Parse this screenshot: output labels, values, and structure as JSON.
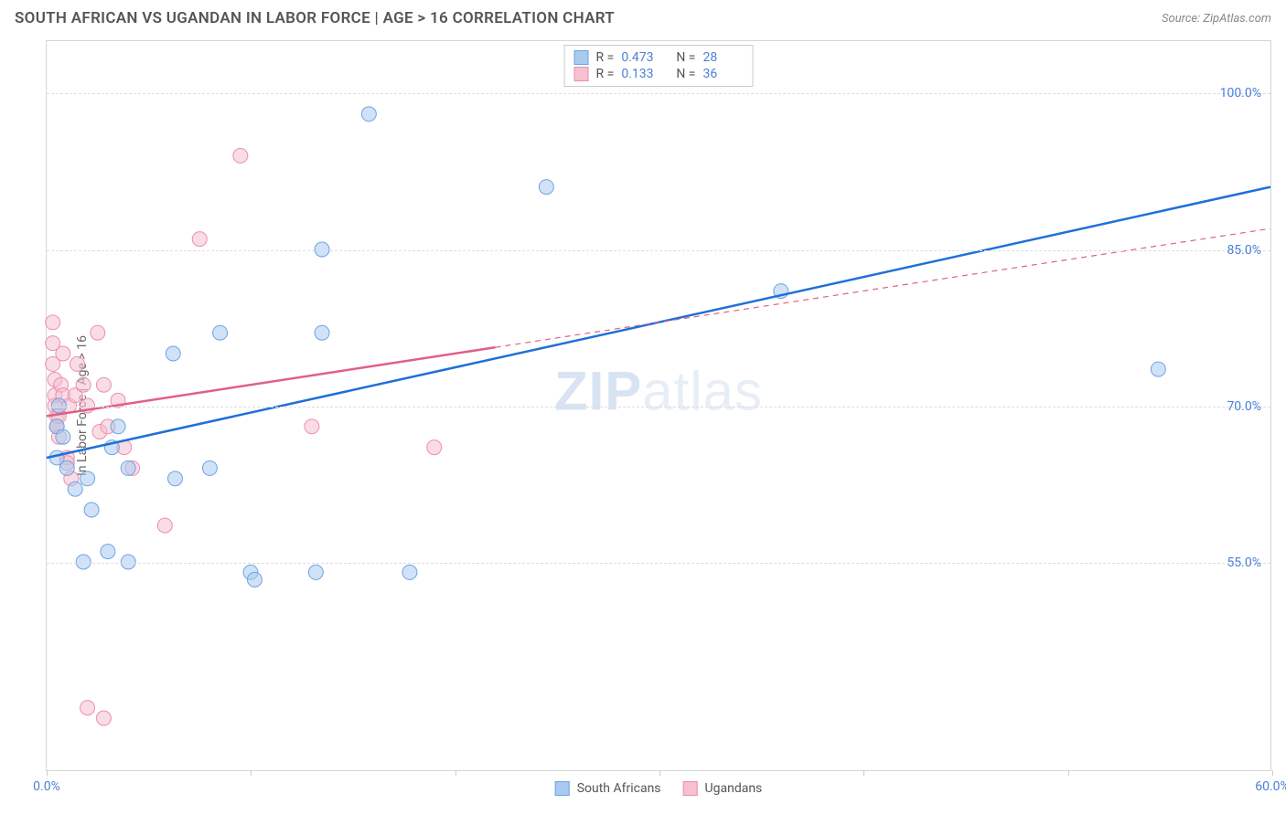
{
  "header": {
    "title": "SOUTH AFRICAN VS UGANDAN IN LABOR FORCE | AGE > 16 CORRELATION CHART",
    "source": "Source: ZipAtlas.com"
  },
  "watermark": {
    "bold": "ZIP",
    "light": "atlas"
  },
  "chart": {
    "type": "scatter-with-regression",
    "y_axis_label": "In Labor Force | Age > 16",
    "background_color": "#ffffff",
    "border_color": "#d5d5d5",
    "grid_color": "#dddddd",
    "xlim": [
      0,
      60
    ],
    "ylim": [
      35,
      105
    ],
    "x_ticks": [
      0,
      10,
      20,
      30,
      40,
      50,
      60
    ],
    "x_tick_labels": {
      "0": "0.0%",
      "60": "60.0%"
    },
    "y_ticks": [
      55,
      70,
      85,
      100
    ],
    "y_tick_labels": {
      "55": "55.0%",
      "70": "70.0%",
      "85": "85.0%",
      "100": "100.0%"
    },
    "tick_label_color": "#4a7fd8",
    "axis_label_color": "#666666",
    "axis_label_fontsize": 14,
    "tick_label_fontsize": 14,
    "marker_radius": 8,
    "marker_opacity": 0.55,
    "line_width_solid": 2.5,
    "line_width_dashed": 1.2,
    "series": [
      {
        "name": "South Africans",
        "label": "South Africans",
        "color_fill": "#a8caf0",
        "color_stroke": "#6fa3e0",
        "line_color": "#1f6fd8",
        "line_style": "solid",
        "R": "0.473",
        "N": "28",
        "points": [
          [
            0.5,
            68
          ],
          [
            0.6,
            70
          ],
          [
            0.8,
            67
          ],
          [
            0.5,
            65
          ],
          [
            1.0,
            64
          ],
          [
            1.4,
            62
          ],
          [
            2.0,
            63
          ],
          [
            3.5,
            68
          ],
          [
            4.0,
            64
          ],
          [
            3.2,
            66
          ],
          [
            2.2,
            60
          ],
          [
            3.0,
            56
          ],
          [
            1.8,
            55
          ],
          [
            4.0,
            55
          ],
          [
            6.3,
            63
          ],
          [
            8.0,
            64
          ],
          [
            10.0,
            54
          ],
          [
            10.2,
            53.3
          ],
          [
            13.2,
            54
          ],
          [
            6.2,
            75
          ],
          [
            8.5,
            77
          ],
          [
            13.5,
            77
          ],
          [
            13.5,
            85
          ],
          [
            15.8,
            98
          ],
          [
            17.8,
            54
          ],
          [
            24.5,
            91
          ],
          [
            36.0,
            81
          ],
          [
            54.5,
            73.5
          ]
        ],
        "regression": {
          "x1": 0,
          "y1": 65,
          "x2": 60,
          "y2": 91
        }
      },
      {
        "name": "Ugandans",
        "label": "Ugandans",
        "color_fill": "#f6c0cf",
        "color_stroke": "#eb8fae",
        "line_color": "#e05f88",
        "line_style": "solid-then-dashed",
        "dash_from_x": 22,
        "R": "0.133",
        "N": "36",
        "points": [
          [
            0.3,
            78
          ],
          [
            0.3,
            76
          ],
          [
            0.3,
            74
          ],
          [
            0.4,
            71
          ],
          [
            0.4,
            72.5
          ],
          [
            0.4,
            70
          ],
          [
            0.5,
            69
          ],
          [
            0.5,
            68
          ],
          [
            0.5,
            68
          ],
          [
            0.6,
            67
          ],
          [
            0.6,
            69
          ],
          [
            0.7,
            72
          ],
          [
            0.8,
            75
          ],
          [
            0.8,
            71
          ],
          [
            1.0,
            65
          ],
          [
            1.0,
            64.5
          ],
          [
            1.1,
            70
          ],
          [
            1.2,
            63
          ],
          [
            1.4,
            71
          ],
          [
            1.5,
            74
          ],
          [
            1.8,
            72
          ],
          [
            2.0,
            70
          ],
          [
            2.5,
            77
          ],
          [
            2.6,
            67.5
          ],
          [
            2.8,
            72
          ],
          [
            3.0,
            68
          ],
          [
            3.5,
            70.5
          ],
          [
            3.8,
            66
          ],
          [
            4.2,
            64
          ],
          [
            5.8,
            58.5
          ],
          [
            7.5,
            86
          ],
          [
            9.5,
            94
          ],
          [
            13.0,
            68
          ],
          [
            19.0,
            66
          ],
          [
            2.0,
            41
          ],
          [
            2.8,
            40
          ]
        ],
        "regression": {
          "x1": 0,
          "y1": 69,
          "x2": 60,
          "y2": 87
        }
      }
    ],
    "legend_top": {
      "r_label": "R =",
      "n_label": "N ="
    },
    "legend_bottom": [
      {
        "label": "South Africans",
        "fill": "#a8caf0",
        "stroke": "#6fa3e0"
      },
      {
        "label": "Ugandans",
        "fill": "#f6c0cf",
        "stroke": "#eb8fae"
      }
    ]
  }
}
